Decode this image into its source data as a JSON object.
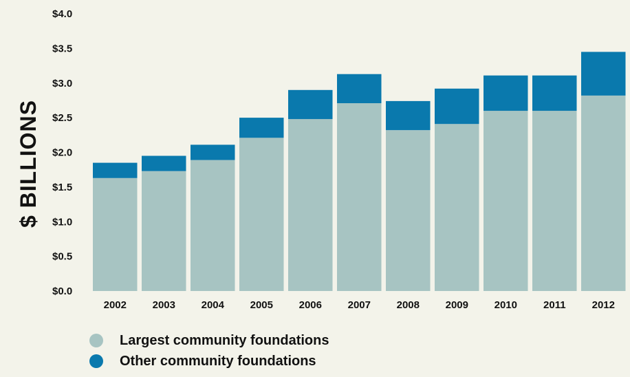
{
  "chart_data": {
    "type": "bar",
    "stacked": true,
    "categories": [
      "2002",
      "2003",
      "2004",
      "2005",
      "2006",
      "2007",
      "2008",
      "2009",
      "2010",
      "2011",
      "2012"
    ],
    "series": [
      {
        "name": "Largest community foundations",
        "color": "#a7c4c2",
        "values": [
          1.63,
          1.73,
          1.89,
          2.21,
          2.48,
          2.71,
          2.32,
          2.41,
          2.6,
          2.6,
          2.82
        ]
      },
      {
        "name": "Other community foundations",
        "color": "#0a79ad",
        "values": [
          0.22,
          0.22,
          0.22,
          0.29,
          0.42,
          0.42,
          0.42,
          0.51,
          0.51,
          0.51,
          0.63
        ]
      }
    ],
    "ylim": [
      0,
      4.0
    ],
    "yticks": [
      "$0.0",
      "$0.5",
      "$1.0",
      "$1.5",
      "$2.0",
      "$2.5",
      "$3.0",
      "$3.5",
      "$4.0"
    ],
    "ylabel": "$ BILLIONS",
    "xlabel": "",
    "title": "",
    "grid": false,
    "legend_position": "bottom-left"
  }
}
